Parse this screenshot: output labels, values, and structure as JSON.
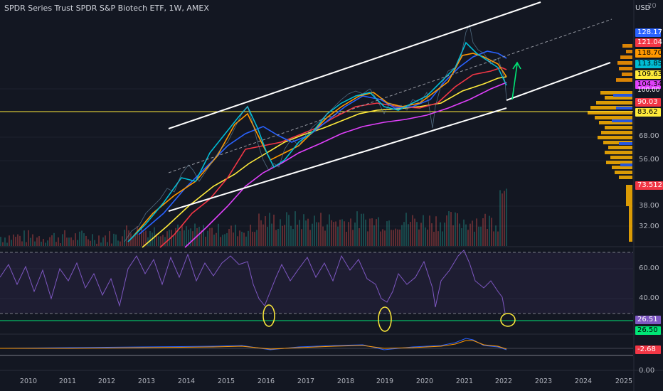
{
  "chart": {
    "title": "SPDR Series Trust SPDR S&P Biotech ETF, 1W, AMEX",
    "currency": "USD",
    "top_tick": "20"
  },
  "price_labels": [
    {
      "text": "128.17",
      "bg": "#2962ff",
      "fg": "#ffffff"
    },
    {
      "text": "121.04",
      "bg": "#f23645",
      "fg": "#ffffff"
    },
    {
      "text": "118.70",
      "bg": "#ff9800",
      "fg": "#000000"
    },
    {
      "text": "113.85",
      "bg": "#00bcd4",
      "fg": "#000000"
    },
    {
      "text": "109.63",
      "bg": "#ffeb3b",
      "fg": "#000000"
    },
    {
      "text": "104.34",
      "bg": "#e040fb",
      "fg": "#000000"
    },
    {
      "text": "100.00",
      "bg": "",
      "fg": "#ffffff"
    },
    {
      "text": "90.03",
      "bg": "#f23645",
      "fg": "#ffffff"
    },
    {
      "text": "83.62",
      "bg": "#ffeb3b",
      "fg": "#000000"
    },
    {
      "text": "73.512M",
      "bg": "#f23645",
      "fg": "#ffffff"
    },
    {
      "text": "26.51",
      "bg": "#7e57c2",
      "fg": "#ffffff"
    },
    {
      "text": "26.50",
      "bg": "#00e676",
      "fg": "#000000"
    },
    {
      "text": "-2.68",
      "bg": "#f23645",
      "fg": "#ffffff"
    }
  ],
  "price_axis": [
    "68.00",
    "56.00",
    "38.00",
    "32.00"
  ],
  "rsi_axis": [
    "60.00",
    "40.00"
  ],
  "macd_axis": [
    "0.00"
  ],
  "years": [
    "2010",
    "2011",
    "2012",
    "2013",
    "2014",
    "2015",
    "2016",
    "2017",
    "2018",
    "2019",
    "2020",
    "2021",
    "2022",
    "2023",
    "2024",
    "2025"
  ],
  "colors": {
    "bg": "#131722",
    "sma_blue": "#2962ff",
    "sma_red": "#f23645",
    "sma_orange": "#ff9800",
    "sma_cyan": "#00bcd4",
    "sma_yellow": "#ffeb3b",
    "sma_magenta": "#e040fb",
    "rsi": "#7e57c2",
    "channel": "#ffffff",
    "annotation": "#ffeb3b",
    "arrow": "#00e676"
  }
}
